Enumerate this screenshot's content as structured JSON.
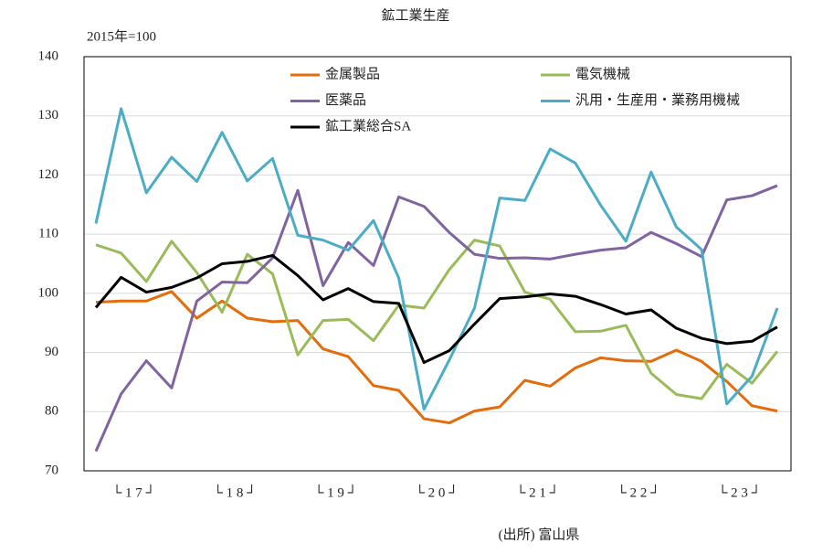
{
  "chart_data": {
    "type": "line",
    "title": "鉱工業生産",
    "subtitle": "2015年=100",
    "source": "(出所) 富山県",
    "categories": [
      null,
      null,
      null,
      null,
      null,
      null,
      null,
      null,
      null,
      null,
      null,
      null,
      null,
      null,
      null,
      null,
      null,
      null,
      null,
      null,
      null,
      null,
      null,
      null,
      null,
      null,
      null,
      null
    ],
    "year_labels": [
      "└ 1 7 ┘",
      "└ 1 8 ┘",
      "└ 1 9 ┘",
      "└ 2 0 ┘",
      "└ 2 1 ┘",
      "└ 2 2 ┘",
      "└ 2 3 ┘"
    ],
    "ylim": [
      70,
      140
    ],
    "yticks": [
      70,
      80,
      90,
      100,
      110,
      120,
      130,
      140
    ],
    "grid": true,
    "series": [
      {
        "name": "金属製品",
        "color": "#e46c0a",
        "values": [
          98.5,
          98.7,
          98.7,
          100.3,
          95.8,
          98.7,
          95.8,
          95.2,
          95.4,
          90.6,
          89.3,
          84.4,
          83.6,
          78.8,
          78.1,
          80.1,
          80.8,
          85.3,
          84.3,
          87.4,
          89.1,
          88.6,
          88.5,
          90.4,
          88.5,
          85.1,
          81.0,
          80.1
        ]
      },
      {
        "name": "電気機械",
        "color": "#9bbb59",
        "values": [
          108.2,
          106.8,
          102.0,
          108.8,
          103.5,
          96.8,
          106.6,
          103.3,
          89.6,
          95.4,
          95.6,
          92.0,
          98.0,
          97.5,
          104.0,
          109.0,
          108.0,
          100.2,
          99.0,
          93.5,
          93.6,
          94.6,
          86.5,
          82.9,
          82.2,
          88.0,
          84.8,
          90.2
        ]
      },
      {
        "name": "医薬品",
        "color": "#8064a2",
        "values": [
          73.3,
          83.0,
          88.6,
          84.0,
          98.7,
          101.9,
          101.8,
          106.0,
          117.4,
          101.3,
          108.6,
          104.7,
          116.3,
          114.7,
          110.3,
          106.6,
          105.9,
          106.0,
          105.8,
          106.6,
          107.3,
          107.7,
          110.3,
          108.4,
          106.2,
          115.8,
          116.5,
          118.2
        ]
      },
      {
        "name": "汎用・生産用・業務用機械",
        "color": "#4bacc6",
        "values": [
          111.8,
          131.2,
          117.0,
          123.0,
          118.9,
          127.2,
          119.0,
          122.8,
          109.8,
          109.0,
          107.3,
          112.3,
          102.6,
          80.4,
          88.7,
          97.5,
          116.1,
          115.7,
          124.4,
          122.0,
          114.9,
          108.8,
          120.5,
          111.2,
          107.4,
          81.3,
          86.0,
          97.5
        ]
      },
      {
        "name": "鉱工業総合SA",
        "color": "#000000",
        "values": [
          97.6,
          102.7,
          100.2,
          101.0,
          102.6,
          105.0,
          105.4,
          106.4,
          103.0,
          98.9,
          100.8,
          98.6,
          98.3,
          88.3,
          90.3,
          94.8,
          99.1,
          99.4,
          99.9,
          99.5,
          98.1,
          96.5,
          97.2,
          94.1,
          92.4,
          91.5,
          91.9,
          94.3
        ]
      }
    ]
  }
}
